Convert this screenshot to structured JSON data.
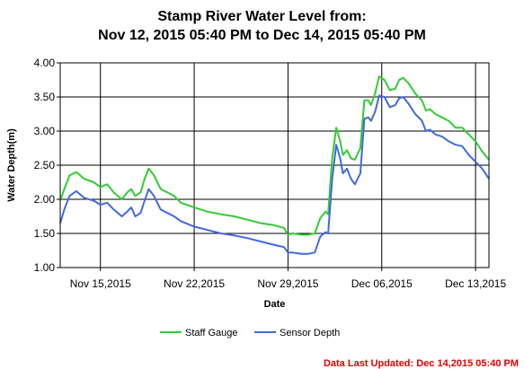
{
  "title_line1": "Stamp River Water Level from:",
  "title_line2": "Nov 12, 2015 05:40 PM to Dec 14, 2015 05:40 PM",
  "footer": {
    "updated_text": "Data Last Updated: Dec 14,2015 05:40 PM",
    "color": "#e00000"
  },
  "chart_data": {
    "type": "line",
    "xlabel": "Date",
    "ylabel": "Water Depth(m)",
    "xlim": [
      0,
      32
    ],
    "ylim": [
      1.0,
      4.0
    ],
    "y_ticks": [
      1.0,
      1.5,
      2.0,
      2.5,
      3.0,
      3.5,
      4.0
    ],
    "y_tick_labels": [
      "1.00",
      "1.50",
      "2.00",
      "2.50",
      "3.00",
      "3.50",
      "4.00"
    ],
    "x_ticks": [
      {
        "x": 3,
        "label": "Nov 15,2015"
      },
      {
        "x": 10,
        "label": "Nov 22,2015"
      },
      {
        "x": 17,
        "label": "Nov 29,2015"
      },
      {
        "x": 24,
        "label": "Dec 06,2015"
      },
      {
        "x": 31,
        "label": "Dec 13,2015"
      }
    ],
    "x_unit": "days from Nov 12, 2015 05:40 PM",
    "grid": true,
    "legend_position": "bottom",
    "series": [
      {
        "name": "Staff Gauge",
        "color": "#33cc33",
        "x": [
          0,
          0.3,
          0.7,
          1.2,
          1.8,
          2.5,
          3.0,
          3.5,
          4.0,
          4.3,
          4.6,
          5.0,
          5.3,
          5.6,
          6.0,
          6.3,
          6.6,
          7.0,
          7.5,
          8.0,
          8.5,
          9.0,
          10.0,
          11.0,
          12.0,
          13.0,
          14.0,
          15.0,
          16.0,
          16.7,
          17.0,
          17.3,
          18.0,
          18.5,
          19.0,
          19.4,
          19.8,
          20.0,
          20.3,
          20.6,
          20.9,
          21.1,
          21.4,
          21.7,
          22.0,
          22.4,
          22.7,
          23.0,
          23.2,
          23.5,
          23.8,
          24.2,
          24.6,
          25.0,
          25.3,
          25.6,
          26.0,
          26.5,
          27.0,
          27.3,
          27.6,
          28.0,
          28.5,
          29.0,
          29.5,
          30.0,
          30.5,
          31.0,
          31.5,
          32.0
        ],
        "y": [
          1.98,
          2.15,
          2.35,
          2.4,
          2.3,
          2.25,
          2.18,
          2.22,
          2.1,
          2.05,
          2.0,
          2.1,
          2.15,
          2.05,
          2.1,
          2.3,
          2.45,
          2.35,
          2.15,
          2.1,
          2.05,
          1.95,
          1.88,
          1.82,
          1.78,
          1.75,
          1.7,
          1.65,
          1.62,
          1.58,
          1.48,
          1.5,
          1.48,
          1.48,
          1.5,
          1.72,
          1.82,
          1.78,
          2.6,
          3.05,
          2.85,
          2.65,
          2.72,
          2.6,
          2.58,
          2.75,
          3.45,
          3.45,
          3.38,
          3.55,
          3.8,
          3.75,
          3.6,
          3.62,
          3.75,
          3.78,
          3.7,
          3.55,
          3.45,
          3.3,
          3.32,
          3.25,
          3.2,
          3.15,
          3.05,
          3.05,
          2.95,
          2.85,
          2.7,
          2.58
        ]
      },
      {
        "name": "Sensor Depth",
        "color": "#4169e1",
        "x": [
          0,
          0.3,
          0.7,
          1.2,
          1.8,
          2.5,
          3.0,
          3.5,
          4.0,
          4.3,
          4.6,
          5.0,
          5.3,
          5.6,
          6.0,
          6.3,
          6.6,
          7.0,
          7.5,
          8.0,
          8.5,
          9.0,
          10.0,
          11.0,
          12.0,
          13.0,
          14.0,
          15.0,
          16.0,
          16.7,
          17.0,
          17.3,
          18.0,
          18.5,
          19.0,
          19.4,
          19.8,
          20.0,
          20.3,
          20.6,
          20.9,
          21.1,
          21.4,
          21.7,
          22.0,
          22.4,
          22.7,
          23.0,
          23.2,
          23.5,
          23.8,
          24.2,
          24.6,
          25.0,
          25.3,
          25.6,
          26.0,
          26.5,
          27.0,
          27.3,
          27.6,
          28.0,
          28.5,
          29.0,
          29.5,
          30.0,
          30.5,
          31.0,
          31.5,
          32.0
        ],
        "y": [
          1.65,
          1.85,
          2.05,
          2.12,
          2.02,
          1.98,
          1.92,
          1.95,
          1.85,
          1.8,
          1.75,
          1.82,
          1.88,
          1.75,
          1.8,
          1.98,
          2.15,
          2.05,
          1.85,
          1.8,
          1.75,
          1.68,
          1.6,
          1.55,
          1.5,
          1.47,
          1.43,
          1.38,
          1.33,
          1.3,
          1.22,
          1.22,
          1.2,
          1.2,
          1.22,
          1.45,
          1.52,
          1.5,
          2.3,
          2.8,
          2.6,
          2.38,
          2.45,
          2.3,
          2.22,
          2.38,
          3.18,
          3.2,
          3.15,
          3.28,
          3.52,
          3.5,
          3.35,
          3.38,
          3.48,
          3.5,
          3.4,
          3.25,
          3.15,
          3.0,
          3.02,
          2.95,
          2.92,
          2.85,
          2.8,
          2.78,
          2.65,
          2.55,
          2.45,
          2.3
        ]
      }
    ]
  }
}
